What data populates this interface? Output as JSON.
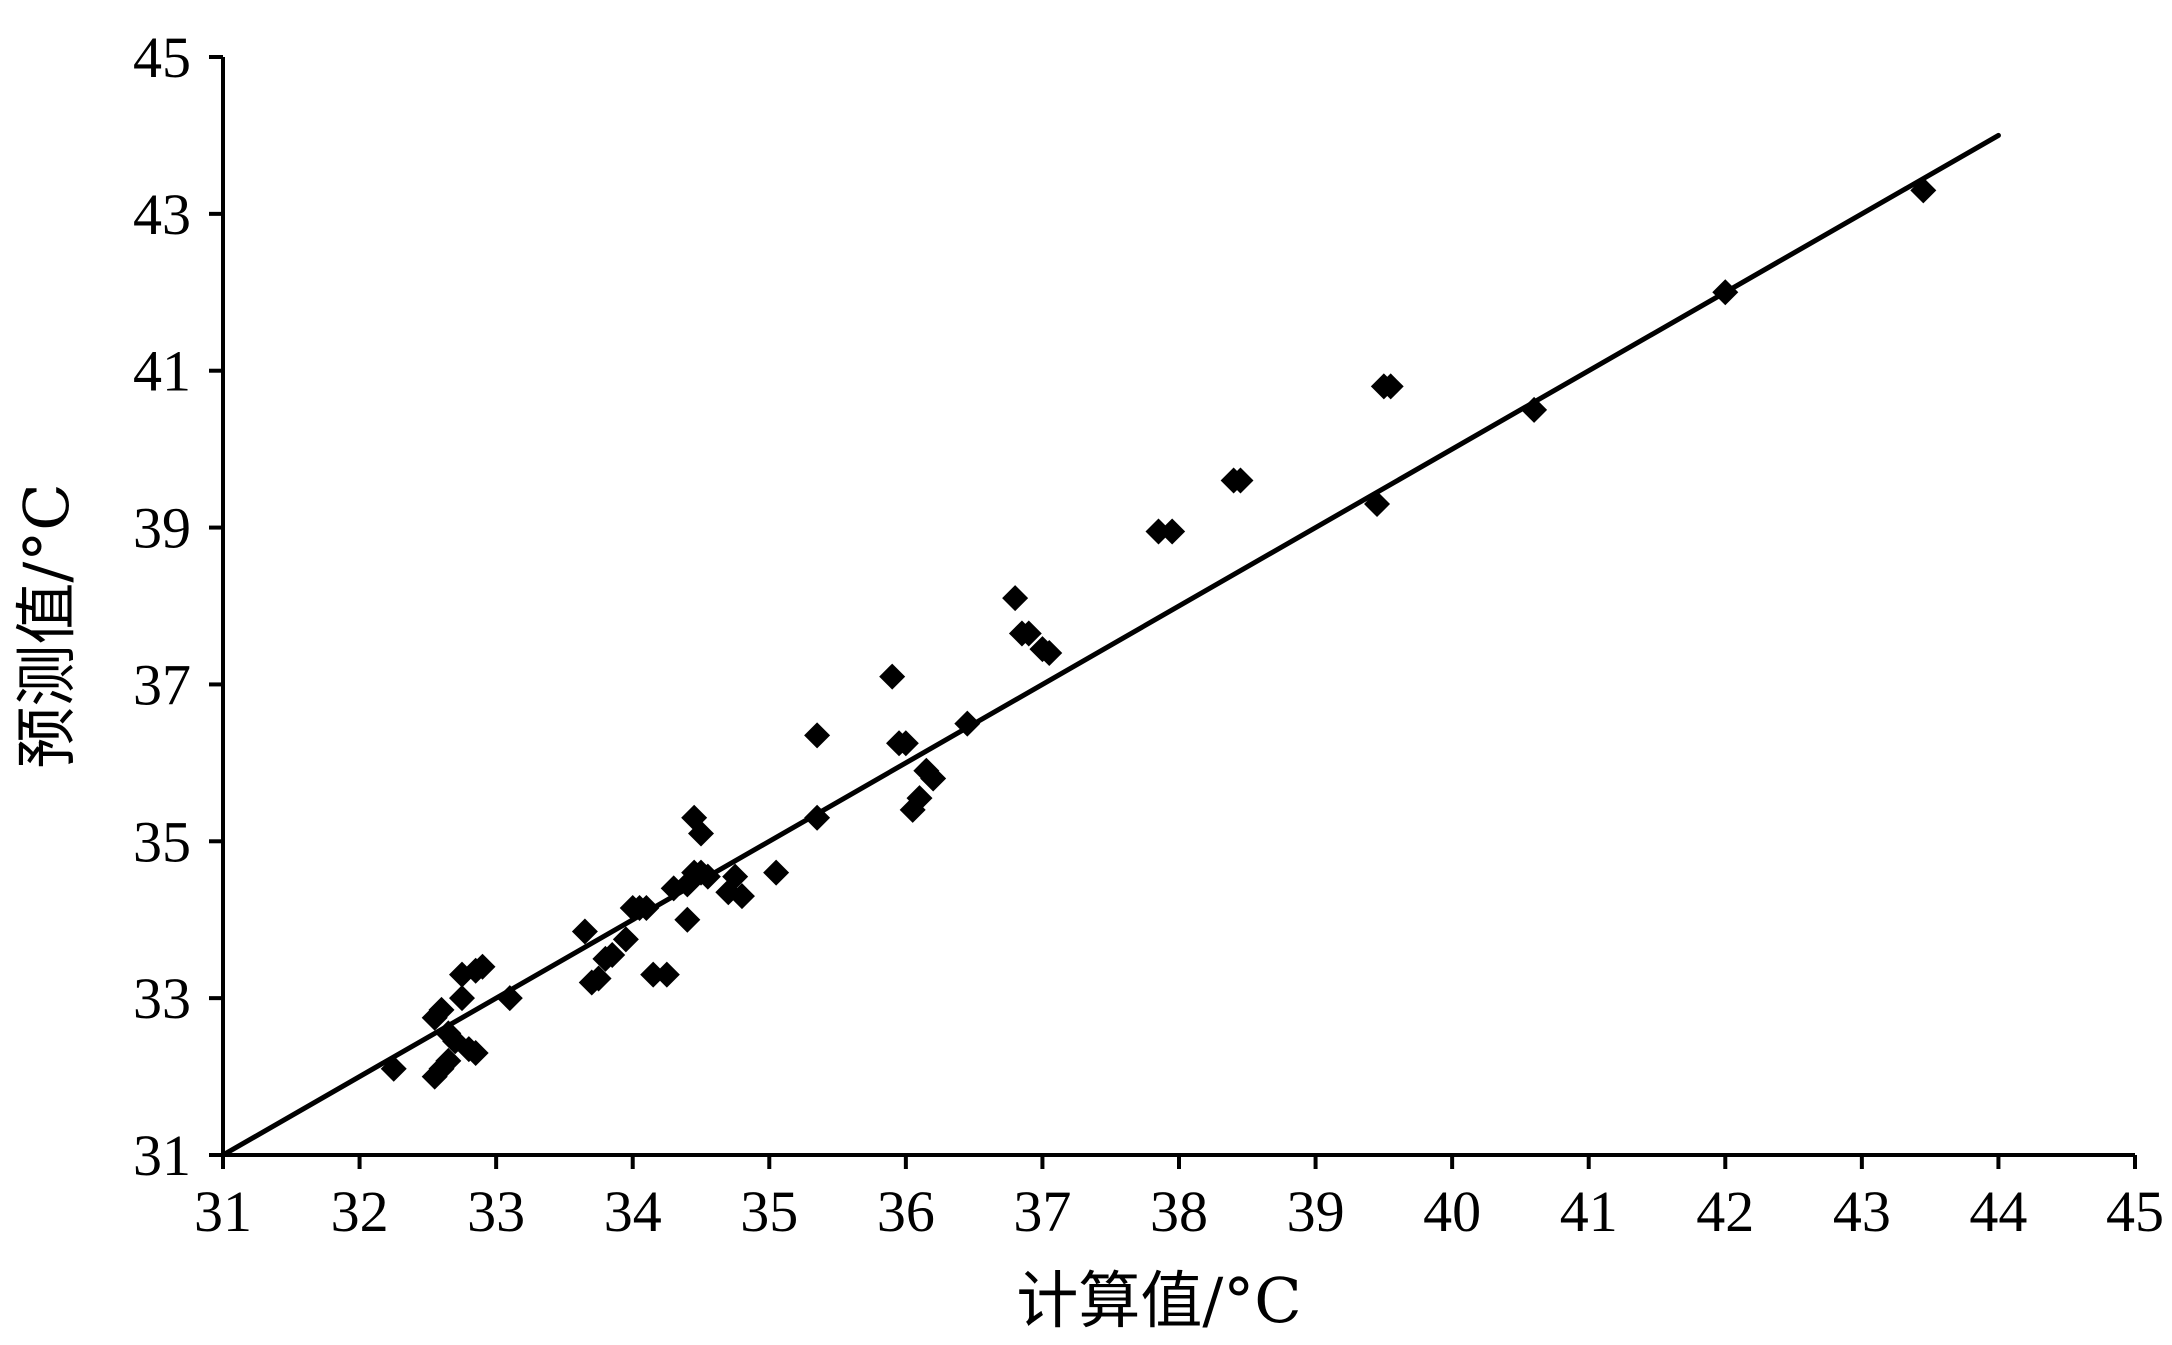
{
  "chart_data": {
    "type": "scatter",
    "xlabel": "计算值/°C",
    "ylabel": "预测值/°C",
    "xlim": [
      31,
      45
    ],
    "ylim": [
      31,
      45
    ],
    "x_ticks": [
      "31",
      "32",
      "33",
      "34",
      "35",
      "36",
      "37",
      "38",
      "39",
      "40",
      "41",
      "42",
      "43",
      "44",
      "45"
    ],
    "y_ticks": [
      "31",
      "33",
      "35",
      "37",
      "39",
      "41",
      "43",
      "45"
    ],
    "grid": false,
    "legend": "none",
    "colors": {
      "points": "#000000",
      "line": "#000000",
      "axes": "#000000"
    },
    "reference_line": {
      "from": [
        31,
        31
      ],
      "to": [
        44,
        44
      ]
    },
    "points": [
      [
        32.25,
        32.1
      ],
      [
        32.55,
        32.0
      ],
      [
        32.6,
        32.1
      ],
      [
        32.65,
        32.2
      ],
      [
        32.55,
        32.75
      ],
      [
        32.6,
        32.85
      ],
      [
        32.65,
        32.55
      ],
      [
        32.7,
        32.45
      ],
      [
        32.8,
        32.35
      ],
      [
        32.85,
        32.3
      ],
      [
        32.75,
        33.0
      ],
      [
        32.75,
        33.3
      ],
      [
        32.85,
        33.35
      ],
      [
        32.9,
        33.4
      ],
      [
        33.1,
        33.0
      ],
      [
        33.65,
        33.85
      ],
      [
        33.7,
        33.2
      ],
      [
        33.75,
        33.25
      ],
      [
        33.8,
        33.5
      ],
      [
        33.85,
        33.55
      ],
      [
        33.95,
        33.75
      ],
      [
        34.0,
        34.15
      ],
      [
        34.05,
        34.15
      ],
      [
        34.1,
        34.15
      ],
      [
        34.15,
        33.3
      ],
      [
        34.25,
        33.3
      ],
      [
        34.3,
        34.4
      ],
      [
        34.4,
        34.45
      ],
      [
        34.4,
        34.0
      ],
      [
        34.45,
        34.6
      ],
      [
        34.5,
        34.6
      ],
      [
        34.55,
        34.55
      ],
      [
        34.45,
        35.3
      ],
      [
        34.5,
        35.1
      ],
      [
        34.75,
        34.55
      ],
      [
        34.7,
        34.35
      ],
      [
        34.8,
        34.3
      ],
      [
        35.05,
        34.6
      ],
      [
        35.35,
        35.3
      ],
      [
        35.35,
        36.35
      ],
      [
        35.9,
        37.1
      ],
      [
        35.95,
        36.25
      ],
      [
        36.0,
        36.25
      ],
      [
        36.05,
        35.4
      ],
      [
        36.1,
        35.55
      ],
      [
        36.15,
        35.9
      ],
      [
        36.2,
        35.8
      ],
      [
        36.45,
        36.5
      ],
      [
        36.8,
        38.1
      ],
      [
        36.85,
        37.65
      ],
      [
        36.9,
        37.65
      ],
      [
        37.0,
        37.45
      ],
      [
        37.05,
        37.4
      ],
      [
        37.85,
        38.95
      ],
      [
        37.95,
        38.95
      ],
      [
        38.4,
        39.6
      ],
      [
        38.45,
        39.6
      ],
      [
        39.45,
        39.3
      ],
      [
        39.5,
        40.8
      ],
      [
        39.55,
        40.8
      ],
      [
        40.6,
        40.5
      ],
      [
        42.0,
        42.0
      ],
      [
        43.45,
        43.3
      ]
    ]
  }
}
